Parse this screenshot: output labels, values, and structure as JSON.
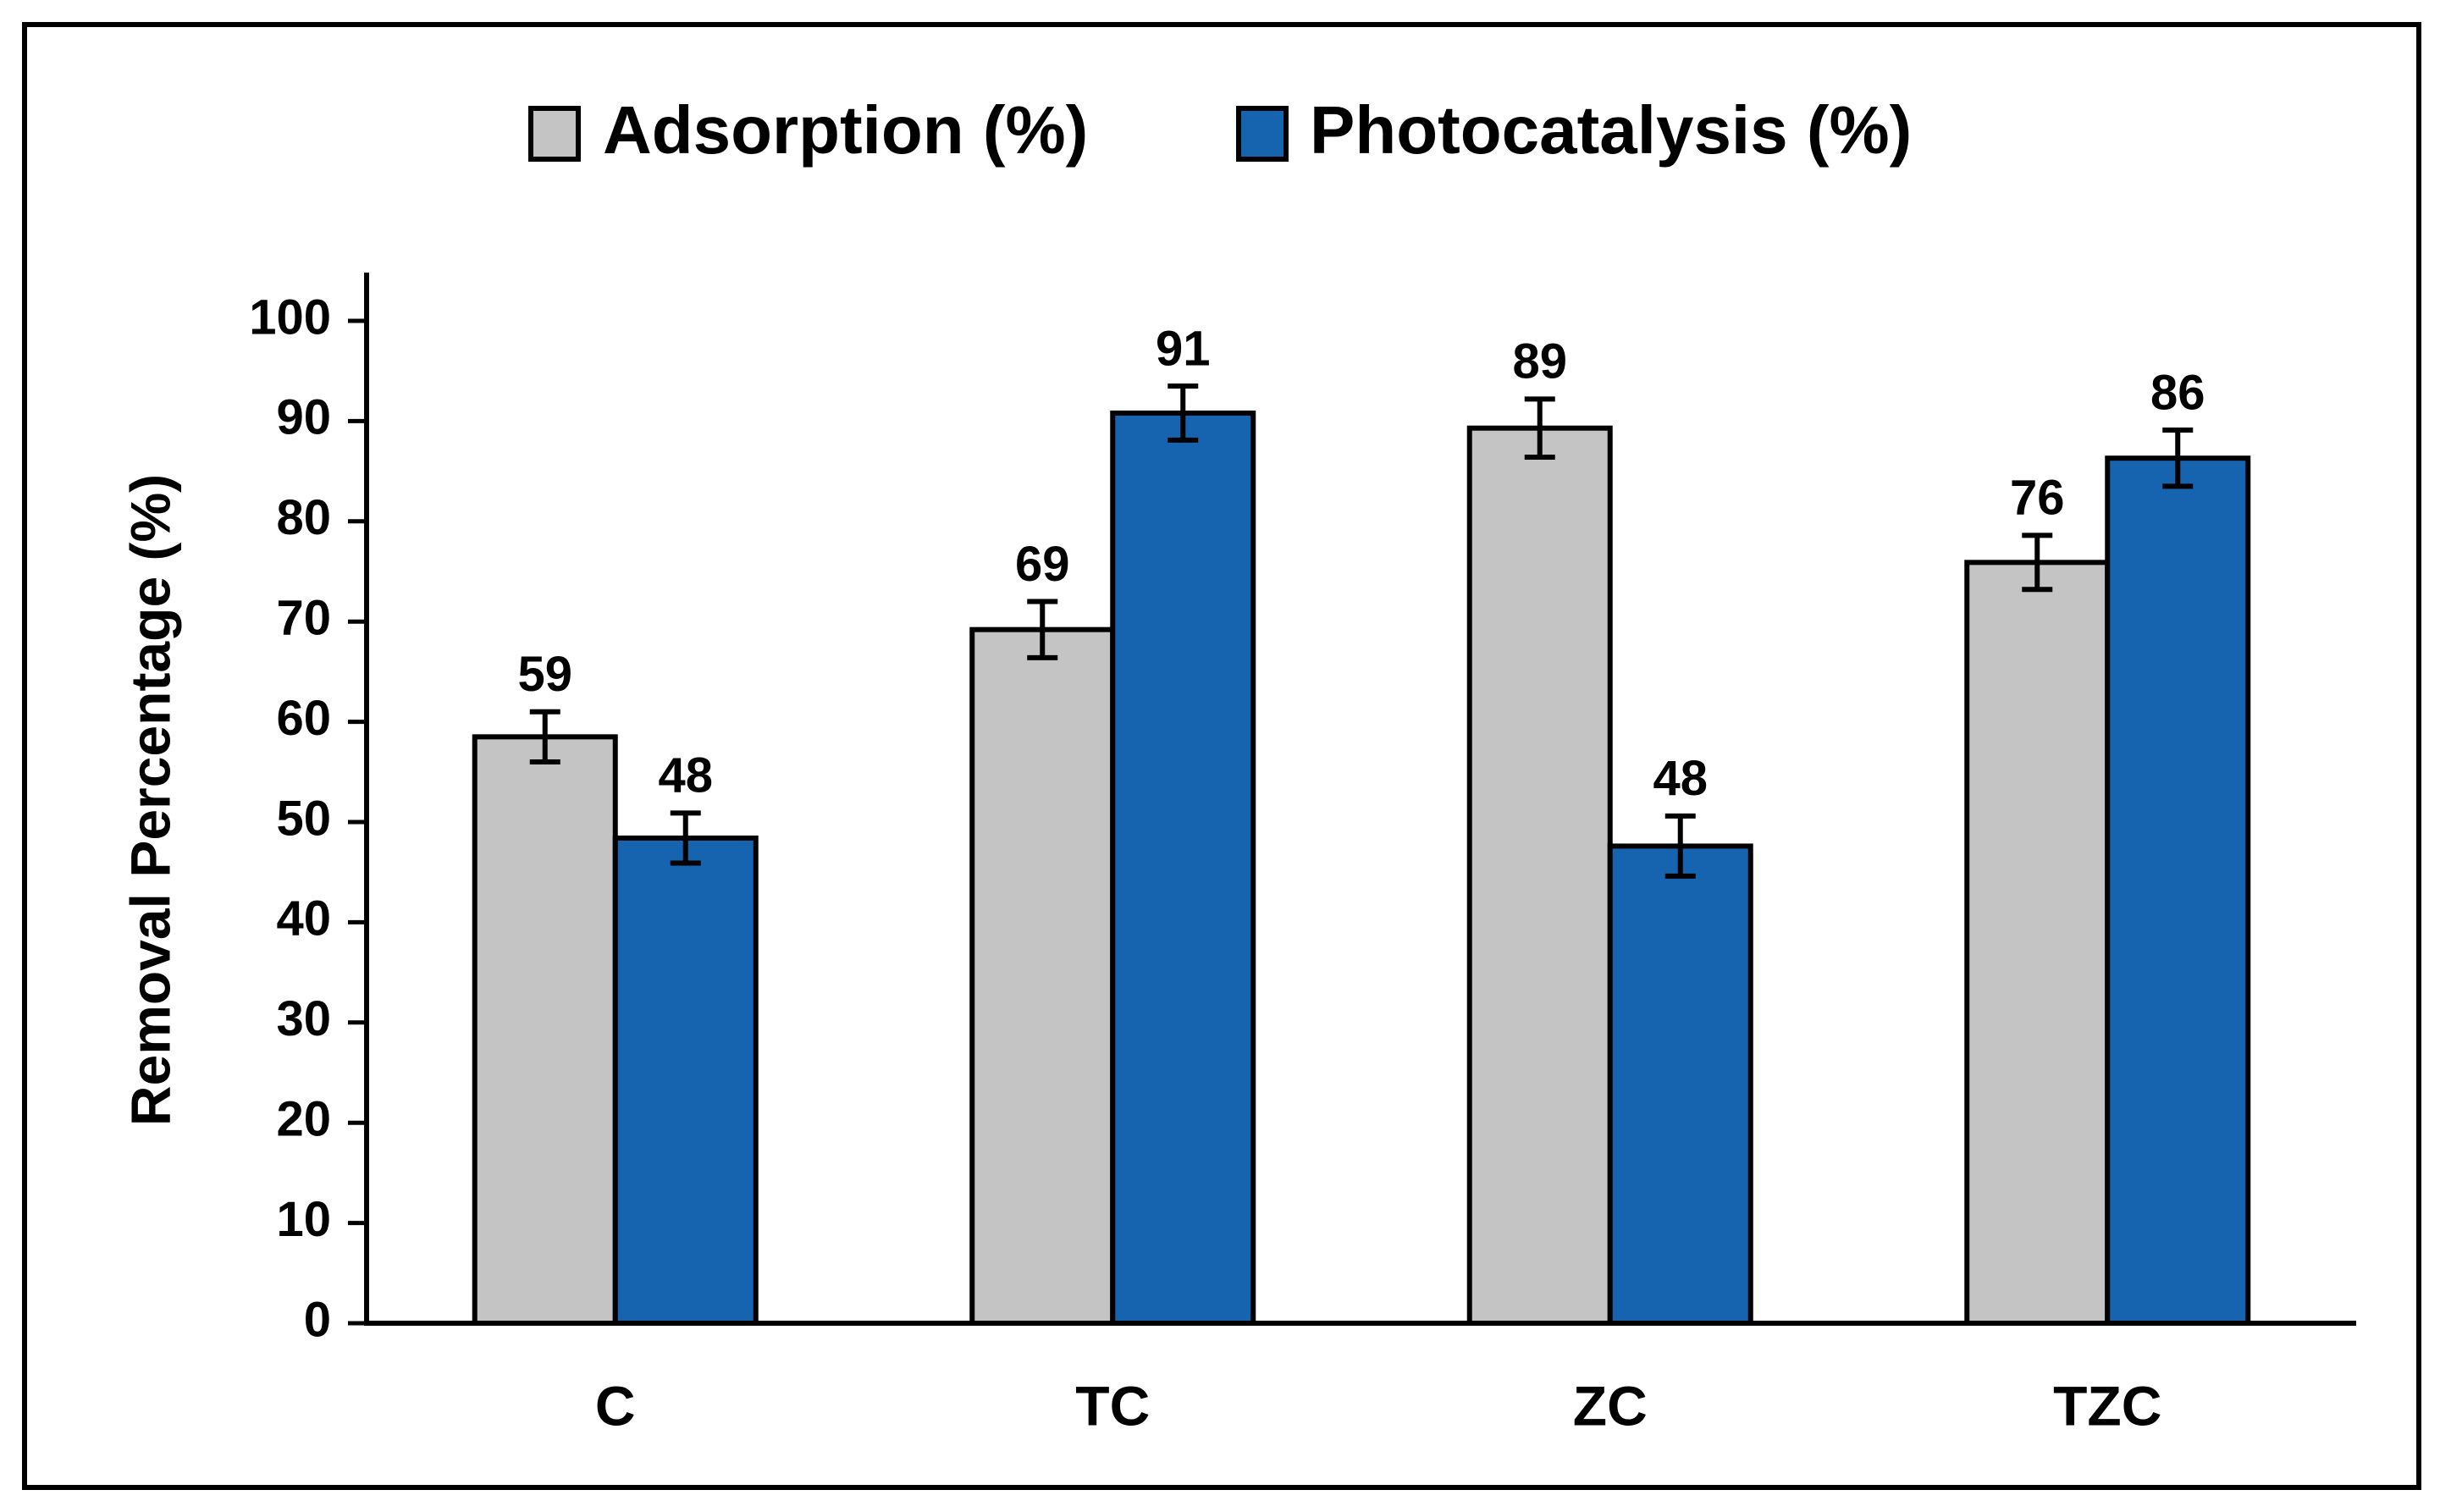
{
  "chart_data": {
    "type": "bar",
    "title": "",
    "categories": [
      "C",
      "TC",
      "ZC",
      "TZC"
    ],
    "series": [
      {
        "name": "Adsorption (%)",
        "color": "#c4c4c4",
        "values": [
          58.5,
          69.2,
          89.3,
          75.9
        ],
        "errors": [
          2.5,
          2.8,
          2.9,
          2.7
        ],
        "labels": [
          "59",
          "69",
          "89",
          "76"
        ]
      },
      {
        "name": "Photocatalysis (%)",
        "color": "#1663b0",
        "values": [
          48.4,
          90.8,
          47.6,
          86.3
        ],
        "errors": [
          2.5,
          2.7,
          3.0,
          2.8
        ],
        "labels": [
          "48",
          "91",
          "48",
          "86"
        ]
      }
    ],
    "xlabel": "",
    "ylabel": "Removal Percentage (%)",
    "ylim": [
      0,
      100
    ],
    "yticks": [
      "0",
      "10",
      "20",
      "30",
      "40",
      "50",
      "60",
      "70",
      "80",
      "90",
      "100"
    ],
    "grid": false,
    "legend": "top-center"
  }
}
